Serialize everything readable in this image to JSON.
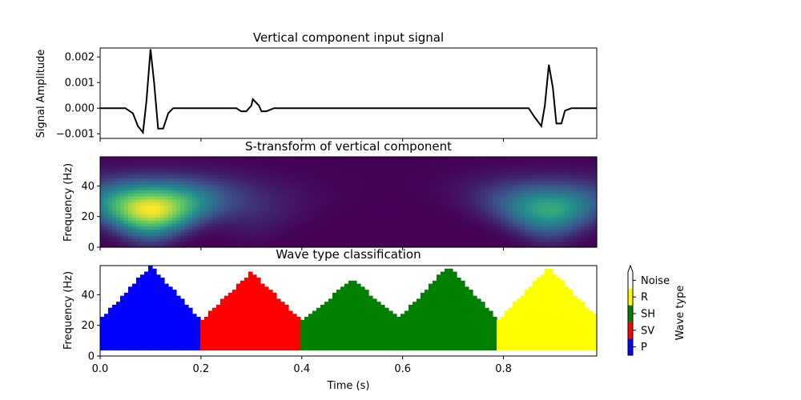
{
  "figure": {
    "xlabel": "Time (s)",
    "x_ticks": [
      "0.0",
      "0.2",
      "0.4",
      "0.6",
      "0.8"
    ],
    "x_tick_values": [
      0.0,
      0.2,
      0.4,
      0.6,
      0.8
    ],
    "xlim": [
      0.0,
      0.985
    ]
  },
  "chart_data": [
    {
      "type": "line",
      "title": "Vertical component input signal",
      "xlabel": "",
      "ylabel": "Signal Amplitude",
      "ylim": [
        -0.00118,
        0.00235
      ],
      "y_ticks": [
        "0.002",
        "0.001",
        "0.000",
        "−0.001"
      ],
      "y_tick_values": [
        0.002,
        0.001,
        0.0,
        -0.001
      ],
      "line_color": "#000000",
      "points": [
        [
          0.0,
          0.0
        ],
        [
          0.05,
          0.0
        ],
        [
          0.065,
          -0.0002
        ],
        [
          0.075,
          -0.0007
        ],
        [
          0.085,
          -0.00095
        ],
        [
          0.092,
          0.0003
        ],
        [
          0.1,
          0.0023
        ],
        [
          0.107,
          0.001
        ],
        [
          0.115,
          -0.0008
        ],
        [
          0.125,
          -0.0008
        ],
        [
          0.135,
          -0.0002
        ],
        [
          0.145,
          0.0
        ],
        [
          0.27,
          0.0
        ],
        [
          0.28,
          -0.00012
        ],
        [
          0.29,
          -0.00012
        ],
        [
          0.3,
          0.0001
        ],
        [
          0.303,
          0.00035
        ],
        [
          0.315,
          0.0001
        ],
        [
          0.32,
          -0.00012
        ],
        [
          0.33,
          -0.00012
        ],
        [
          0.345,
          0.0
        ],
        [
          0.85,
          0.0
        ],
        [
          0.86,
          -0.0003
        ],
        [
          0.875,
          -0.0007
        ],
        [
          0.882,
          0.0001
        ],
        [
          0.89,
          0.0017
        ],
        [
          0.898,
          0.0008
        ],
        [
          0.905,
          -0.0006
        ],
        [
          0.915,
          -0.0006
        ],
        [
          0.922,
          -0.0001
        ],
        [
          0.935,
          0.0
        ],
        [
          0.985,
          0.0
        ]
      ]
    },
    {
      "type": "heatmap",
      "title": "S-transform of vertical component",
      "xlabel": "",
      "ylabel": "Frequency (Hz)",
      "ylim": [
        0,
        59
      ],
      "y_ticks": [
        "0",
        "20",
        "40"
      ],
      "y_tick_values": [
        0,
        20,
        40
      ],
      "colormap": "viridis",
      "blobs": [
        {
          "t": 0.1,
          "f": 25,
          "amplitude": 1.0
        },
        {
          "t": 0.3,
          "f": 25,
          "amplitude": 0.12
        },
        {
          "t": 0.89,
          "f": 25,
          "amplitude": 0.6
        }
      ]
    },
    {
      "type": "heatmap",
      "title": "Wave type classification",
      "xlabel": "Time (s)",
      "ylabel": "Frequency (Hz)",
      "ylim": [
        0,
        59
      ],
      "y_ticks": [
        "0",
        "20",
        "40"
      ],
      "y_tick_values": [
        0,
        20,
        40
      ],
      "regions": [
        {
          "class": "P",
          "t": 0.1,
          "f_top": 59
        },
        {
          "class": "SV",
          "t": 0.3,
          "f_top": 55
        },
        {
          "class": "SH",
          "t": 0.5,
          "f_top": 50
        },
        {
          "class": "SH",
          "t": 0.69,
          "f_top": 59
        },
        {
          "class": "R",
          "t": 0.89,
          "f_top": 58
        }
      ]
    }
  ],
  "colorbar": {
    "label": "Wave type",
    "classes": [
      "P",
      "SV",
      "SH",
      "R",
      "Noise"
    ],
    "colors": {
      "P": "#0000ff",
      "SV": "#ff0000",
      "SH": "#008000",
      "R": "#ffff00",
      "Noise": "#ffffff"
    }
  }
}
